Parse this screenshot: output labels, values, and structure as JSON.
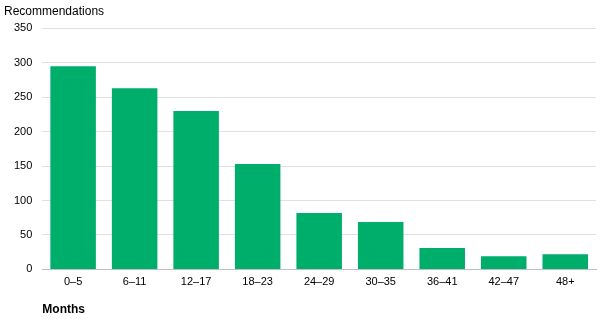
{
  "chart_data": {
    "type": "bar",
    "x_label": "Months",
    "y_label": "Recommendations",
    "categories": [
      "0–5",
      "6–11",
      "12–17",
      "18–23",
      "24–29",
      "30–35",
      "36–41",
      "42–47",
      "48+"
    ],
    "values": [
      295,
      263,
      230,
      153,
      82,
      69,
      31,
      19,
      22
    ],
    "color": "#00ae6b",
    "ylim": [
      0,
      350
    ],
    "yticks": [
      0,
      50,
      100,
      150,
      200,
      250,
      300,
      350
    ],
    "grid": true
  }
}
